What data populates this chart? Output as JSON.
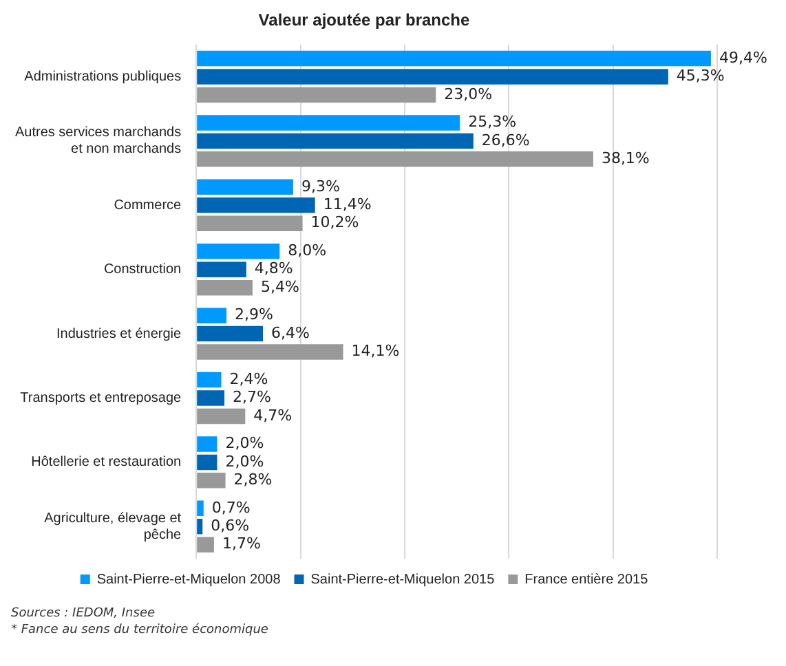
{
  "chart_data": {
    "type": "bar",
    "orientation": "horizontal",
    "title": "Valeur ajoutée par branche",
    "categories": [
      "Administrations publiques",
      "Autres services marchands et non marchands",
      "Commerce",
      "Construction",
      "Industries et énergie",
      "Transports et entreposage",
      "Hôtellerie et restauration",
      "Agriculture, élevage et pêche"
    ],
    "series": [
      {
        "name": "Saint-Pierre-et-Miquelon 2008",
        "color": "#0099ff",
        "values": [
          49.4,
          25.3,
          9.3,
          8.0,
          2.9,
          2.4,
          2.0,
          0.7
        ],
        "value_labels": [
          "49,4%",
          "25,3%",
          "9,3%",
          "8,0%",
          "2,9%",
          "2,4%",
          "2,0%",
          "0,7%"
        ]
      },
      {
        "name": "Saint-Pierre-et-Miquelon 2015",
        "color": "#0066b3",
        "values": [
          45.3,
          26.6,
          11.4,
          4.8,
          6.4,
          2.7,
          2.0,
          0.6
        ],
        "value_labels": [
          "45,3%",
          "26,6%",
          "11,4%",
          "4,8%",
          "6,4%",
          "2,7%",
          "2,0%",
          "0,6%"
        ]
      },
      {
        "name": "France entière 2015",
        "color": "#999999",
        "values": [
          23.0,
          38.1,
          10.2,
          5.4,
          14.1,
          4.7,
          2.8,
          1.7
        ],
        "value_labels": [
          "23,0%",
          "38,1%",
          "10,2%",
          "5,4%",
          "14,1%",
          "4,7%",
          "2,8%",
          "1,7%"
        ]
      }
    ],
    "xlim": [
      0,
      50
    ],
    "xticks": [
      {
        "value": 0,
        "label": null
      },
      {
        "value": 10,
        "label": null
      },
      {
        "value": 20,
        "label": null
      },
      {
        "value": 30,
        "label": null
      },
      {
        "value": 40,
        "label": null
      },
      {
        "value": 50,
        "label": null
      }
    ],
    "grid": "x",
    "legend": "bottom",
    "tick_labels": "y",
    "annotations": [
      "Sources : IEDOM, Insee",
      "* Fance au sens du territoire économique"
    ]
  }
}
